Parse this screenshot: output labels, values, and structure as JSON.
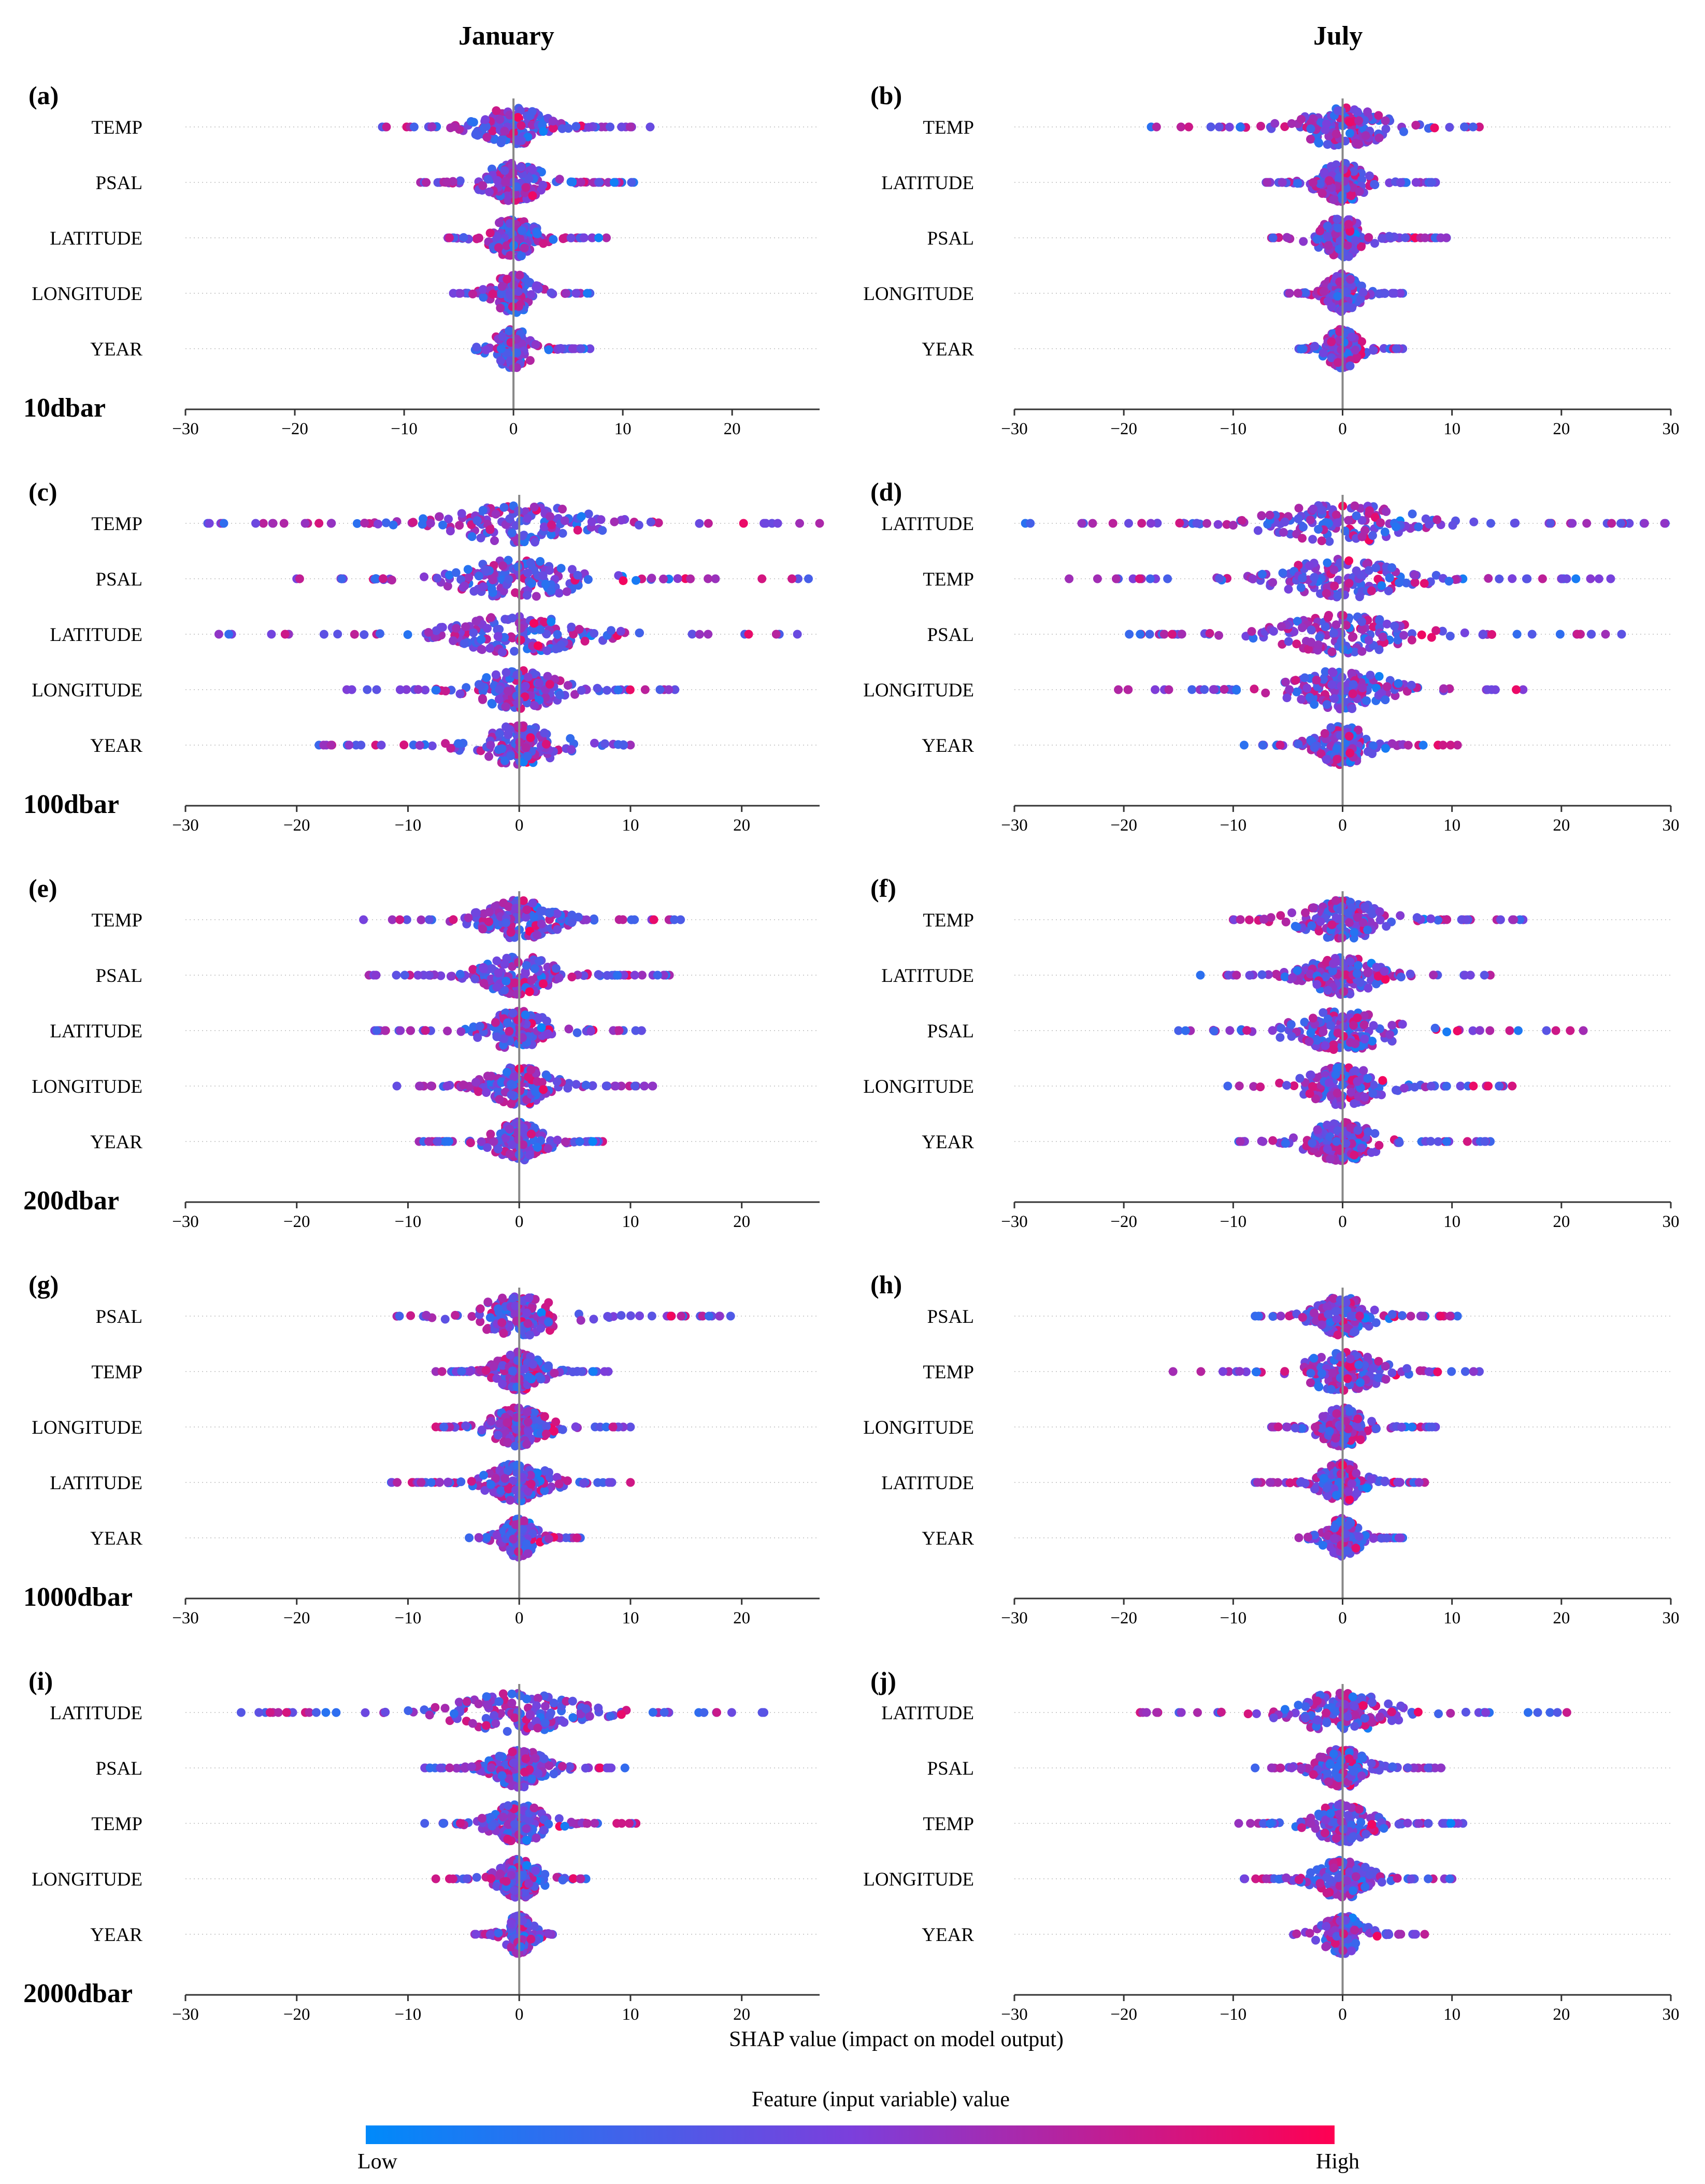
{
  "columns": {
    "left_title": "January",
    "right_title": "July"
  },
  "depths": [
    "10dbar",
    "100dbar",
    "200dbar",
    "1000dbar",
    "2000dbar"
  ],
  "x_axis_label": "SHAP value (impact on model output)",
  "colorbar": {
    "title": "Feature (input variable) value",
    "low_label": "Low",
    "high_label": "High",
    "low_color": "#008afa",
    "high_color": "#ff0052"
  },
  "chart_data": [
    {
      "type": "scatter",
      "panel": "(a)",
      "month": "January",
      "depth": "10dbar",
      "xlim": [
        -30,
        28
      ],
      "xticks": [
        -30,
        -20,
        -10,
        0,
        10,
        20
      ],
      "features": [
        "TEMP",
        "PSAL",
        "LATITUDE",
        "LONGITUDE",
        "YEAR"
      ],
      "spread": [
        [
          -12,
          12.5
        ],
        [
          -8.5,
          11
        ],
        [
          -6,
          8.5
        ],
        [
          -5.5,
          7
        ],
        [
          -3.5,
          7
        ]
      ]
    },
    {
      "type": "scatter",
      "panel": "(b)",
      "month": "July",
      "depth": "10dbar",
      "xlim": [
        -30,
        30
      ],
      "xticks": [
        -30,
        -20,
        -10,
        0,
        10,
        20,
        30
      ],
      "features": [
        "TEMP",
        "LATITUDE",
        "PSAL",
        "LONGITUDE",
        "YEAR"
      ],
      "spread": [
        [
          -17.5,
          12.5
        ],
        [
          -7,
          8.5
        ],
        [
          -6.5,
          9.5
        ],
        [
          -5,
          5.5
        ],
        [
          -4,
          5.5
        ]
      ]
    },
    {
      "type": "scatter",
      "panel": "(c)",
      "month": "January",
      "depth": "100dbar",
      "xlim": [
        -30,
        27
      ],
      "xticks": [
        -30,
        -20,
        -10,
        0,
        10,
        20
      ],
      "features": [
        "TEMP",
        "PSAL",
        "LATITUDE",
        "LONGITUDE",
        "YEAR"
      ],
      "spread": [
        [
          -28,
          27
        ],
        [
          -20,
          26
        ],
        [
          -27,
          25
        ],
        [
          -15.5,
          14
        ],
        [
          -18,
          10
        ]
      ]
    },
    {
      "type": "scatter",
      "panel": "(d)",
      "month": "July",
      "depth": "100dbar",
      "xlim": [
        -30,
        30
      ],
      "xticks": [
        -30,
        -20,
        -10,
        0,
        10,
        20,
        30
      ],
      "features": [
        "LATITUDE",
        "TEMP",
        "PSAL",
        "LONGITUDE",
        "YEAR"
      ],
      "spread": [
        [
          -29,
          29.5
        ],
        [
          -25,
          24.5
        ],
        [
          -19.5,
          25.5
        ],
        [
          -20.5,
          16.5
        ],
        [
          -9,
          10.5
        ]
      ]
    },
    {
      "type": "scatter",
      "panel": "(e)",
      "month": "January",
      "depth": "200dbar",
      "xlim": [
        -30,
        27
      ],
      "xticks": [
        -30,
        -20,
        -10,
        0,
        10,
        20
      ],
      "features": [
        "TEMP",
        "PSAL",
        "LATITUDE",
        "LONGITUDE",
        "YEAR"
      ],
      "spread": [
        [
          -14,
          14.5
        ],
        [
          -13.5,
          13.5
        ],
        [
          -13,
          11
        ],
        [
          -11,
          12
        ],
        [
          -9,
          7.5
        ]
      ]
    },
    {
      "type": "scatter",
      "panel": "(f)",
      "month": "July",
      "depth": "200dbar",
      "xlim": [
        -30,
        30
      ],
      "xticks": [
        -30,
        -20,
        -10,
        0,
        10,
        20,
        30
      ],
      "features": [
        "TEMP",
        "LATITUDE",
        "PSAL",
        "LONGITUDE",
        "YEAR"
      ],
      "spread": [
        [
          -10,
          16.5
        ],
        [
          -13,
          13.5
        ],
        [
          -15,
          22
        ],
        [
          -10.5,
          15.5
        ],
        [
          -9.5,
          13.5
        ]
      ]
    },
    {
      "type": "scatter",
      "panel": "(g)",
      "month": "January",
      "depth": "1000dbar",
      "xlim": [
        -30,
        27
      ],
      "xticks": [
        -30,
        -20,
        -10,
        0,
        10,
        20
      ],
      "features": [
        "PSAL",
        "TEMP",
        "LONGITUDE",
        "LATITUDE",
        "YEAR"
      ],
      "spread": [
        [
          -11,
          19
        ],
        [
          -7.5,
          8
        ],
        [
          -7.5,
          10
        ],
        [
          -11.5,
          10
        ],
        [
          -4.5,
          5.5
        ]
      ]
    },
    {
      "type": "scatter",
      "panel": "(h)",
      "month": "July",
      "depth": "1000dbar",
      "xlim": [
        -30,
        30
      ],
      "xticks": [
        -30,
        -20,
        -10,
        0,
        10,
        20,
        30
      ],
      "features": [
        "PSAL",
        "TEMP",
        "LONGITUDE",
        "LATITUDE",
        "YEAR"
      ],
      "spread": [
        [
          -8,
          10.5
        ],
        [
          -15.5,
          12.5
        ],
        [
          -6.5,
          8.5
        ],
        [
          -8,
          7.5
        ],
        [
          -4,
          5.5
        ]
      ]
    },
    {
      "type": "scatter",
      "panel": "(i)",
      "month": "January",
      "depth": "2000dbar",
      "xlim": [
        -30,
        27
      ],
      "xticks": [
        -30,
        -20,
        -10,
        0,
        10,
        20
      ],
      "features": [
        "LATITUDE",
        "PSAL",
        "TEMP",
        "LONGITUDE",
        "YEAR"
      ],
      "spread": [
        [
          -25,
          22
        ],
        [
          -8.5,
          9.5
        ],
        [
          -8.5,
          10.5
        ],
        [
          -7.5,
          6
        ],
        [
          -4,
          3
        ]
      ]
    },
    {
      "type": "scatter",
      "panel": "(j)",
      "month": "July",
      "depth": "2000dbar",
      "xlim": [
        -30,
        30
      ],
      "xticks": [
        -30,
        -20,
        -10,
        0,
        10,
        20,
        30
      ],
      "features": [
        "LATITUDE",
        "PSAL",
        "TEMP",
        "LONGITUDE",
        "YEAR"
      ],
      "spread": [
        [
          -18.5,
          20.5
        ],
        [
          -8,
          9
        ],
        [
          -9.5,
          11
        ],
        [
          -9,
          10
        ],
        [
          -4.5,
          7.5
        ]
      ]
    }
  ]
}
